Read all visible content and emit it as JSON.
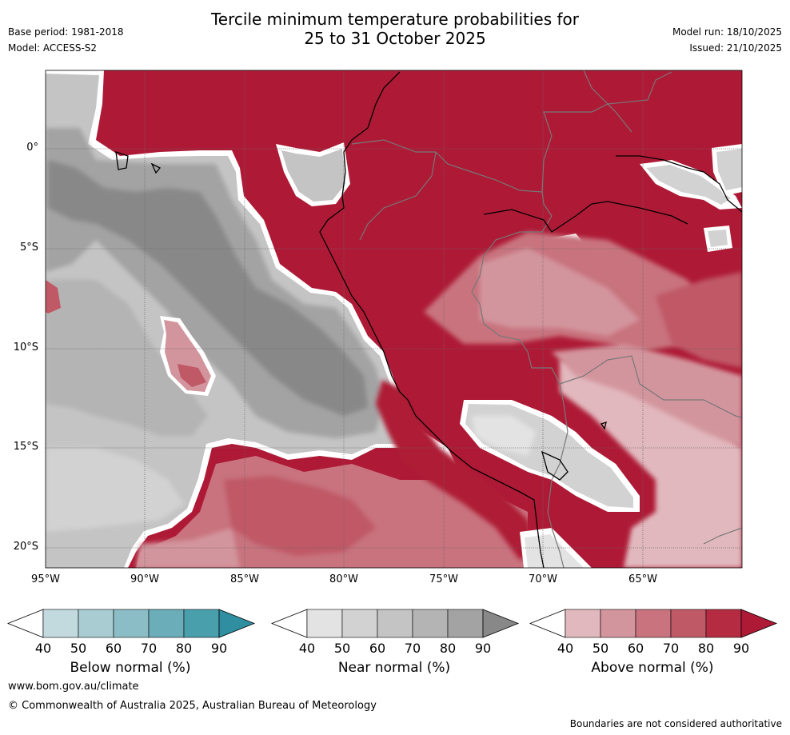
{
  "title_line1": "Tercile minimum temperature probabilities for",
  "title_line2": "25 to 31 October 2025",
  "meta": {
    "base_period": "Base period: 1981-2018",
    "model": "Model: ACCESS-S2",
    "model_run": "Model run: 18/10/2025",
    "issued": "Issued: 21/10/2025"
  },
  "map": {
    "lat_labels": [
      "0°",
      "5°S",
      "10°S",
      "15°S",
      "20°S"
    ],
    "lon_labels": [
      "95°W",
      "90°W",
      "85°W",
      "80°W",
      "75°W",
      "70°W",
      "65°W"
    ]
  },
  "colorbars": [
    {
      "label": "Below normal (%)",
      "ticks": [
        "40",
        "50",
        "60",
        "70",
        "80",
        "90"
      ],
      "colors": [
        "#c2d9de",
        "#a8ccd2",
        "#8bbdc6",
        "#6badb8",
        "#4a9fad",
        "#2f8fa0"
      ]
    },
    {
      "label": "Near normal (%)",
      "ticks": [
        "40",
        "50",
        "60",
        "70",
        "80",
        "90"
      ],
      "colors": [
        "#e3e3e3",
        "#d2d2d2",
        "#c4c4c4",
        "#b4b4b4",
        "#a3a3a3",
        "#888888"
      ]
    },
    {
      "label": "Above normal (%)",
      "ticks": [
        "40",
        "50",
        "60",
        "70",
        "80",
        "90"
      ],
      "colors": [
        "#e1b8bd",
        "#d3959d",
        "#c8737e",
        "#c05966",
        "#b52b42",
        "#ae1a36"
      ]
    }
  ],
  "footer": {
    "website": "www.bom.gov.au/climate",
    "copyright": "© Commonwealth of Australia 2025, Australian Bureau of Meteorology",
    "disclaimer": "Boundaries are not considered authoritative"
  }
}
